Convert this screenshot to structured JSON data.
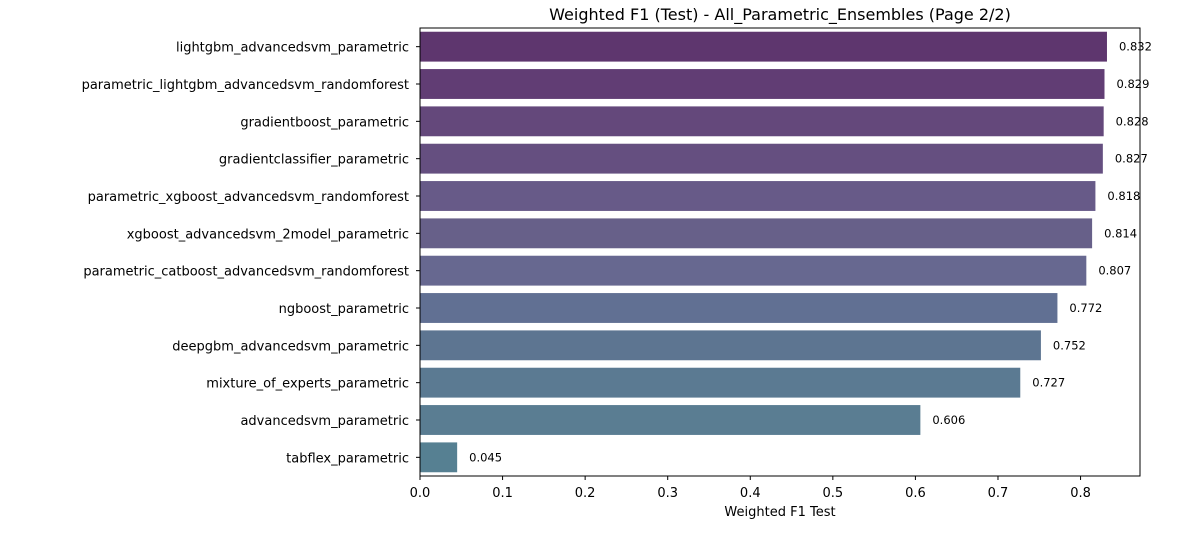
{
  "chart_data": {
    "type": "bar",
    "orientation": "horizontal",
    "title": "Weighted F1 (Test) - All_Parametric_Ensembles (Page 2/2)",
    "xlabel": "Weighted F1 Test",
    "ylabel": "",
    "xlim": [
      0,
      0.872
    ],
    "xticks": [
      "0.0",
      "0.1",
      "0.2",
      "0.3",
      "0.4",
      "0.5",
      "0.6",
      "0.7",
      "0.8"
    ],
    "grid": false,
    "categories": [
      "lightgbm_advancedsvm_parametric",
      "parametric_lightgbm_advancedsvm_randomforest",
      "gradientboost_parametric",
      "gradientclassifier_parametric",
      "parametric_xgboost_advancedsvm_randomforest",
      "xgboost_advancedsvm_2model_parametric",
      "parametric_catboost_advancedsvm_randomforest",
      "ngboost_parametric",
      "deepgbm_advancedsvm_parametric",
      "mixture_of_experts_parametric",
      "advancedsvm_parametric",
      "tabflex_parametric"
    ],
    "values": [
      0.832,
      0.829,
      0.828,
      0.827,
      0.818,
      0.814,
      0.807,
      0.772,
      0.752,
      0.727,
      0.606,
      0.045
    ],
    "value_labels": [
      "0.832",
      "0.829",
      "0.828",
      "0.827",
      "0.818",
      "0.814",
      "0.807",
      "0.772",
      "0.752",
      "0.727",
      "0.606",
      "0.045"
    ],
    "colors": [
      "#5e366e",
      "#613d74",
      "#64487b",
      "#654f80",
      "#675a88",
      "#676089",
      "#676890",
      "#617093",
      "#5d7591",
      "#5b7a92",
      "#5a7d92",
      "#568092"
    ]
  }
}
